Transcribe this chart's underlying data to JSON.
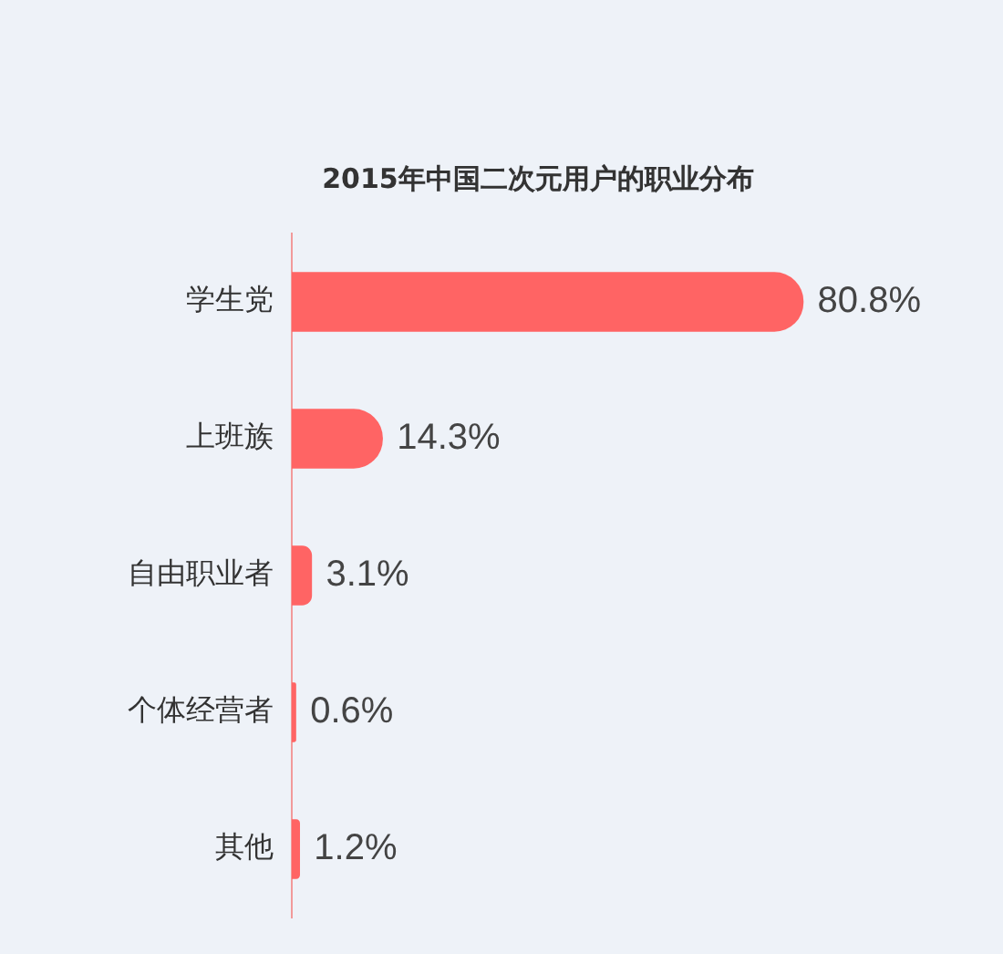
{
  "chart_data": {
    "type": "bar",
    "orientation": "horizontal",
    "title": "2015年中国二次元用户的职业分布",
    "categories": [
      "学生党",
      "上班族",
      "自由职业者",
      "个体经营者",
      "其他"
    ],
    "values": [
      80.8,
      14.3,
      3.1,
      0.6,
      1.2
    ],
    "value_labels": [
      "80.8%",
      "14.3%",
      "3.1%",
      "0.6%",
      "1.2%"
    ],
    "color": "#ff6464",
    "grid": false,
    "legend": false
  }
}
